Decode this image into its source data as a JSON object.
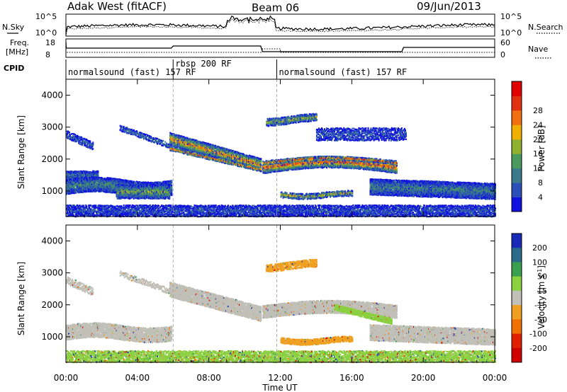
{
  "header": {
    "radar": "Adak West (fitACF)",
    "beam": "Beam 06",
    "date": "09/Jun/2013"
  },
  "top_panels": {
    "nsky_label": "N.Sky",
    "nsearch_label": "N.Search",
    "freq_label_1": "Freq.",
    "freq_label_2": "[MHz]",
    "nave_label": "Nave",
    "cpid_label": "CPID",
    "noise_ticks_left": [
      "10^5",
      "10^0"
    ],
    "noise_ticks_right": [
      "10^5",
      "10^0"
    ],
    "freq_ticks_left": [
      "18",
      "8"
    ],
    "freq_ticks_right": [
      "60",
      "0"
    ]
  },
  "cpid_segments": [
    {
      "label": "normalsound (fast) 157 RF",
      "start_h": 0.0,
      "end_h": 6.0
    },
    {
      "label": "rbsp 200 RF",
      "start_h": 6.0,
      "end_h": 11.8
    },
    {
      "label": "normalsound (fast) 157 RF",
      "start_h": 11.8,
      "end_h": 24.0
    }
  ],
  "chart_data": [
    {
      "type": "heatmap",
      "title": "",
      "ylabel": "Slant Range [km]",
      "xlabel": "",
      "xlim_hours": [
        0,
        24
      ],
      "ylim": [
        200,
        4500
      ],
      "yticks": [
        "1000",
        "2000",
        "3000",
        "4000"
      ],
      "colorbar": {
        "label": "Power [dB]",
        "ticks": [
          "4",
          "8",
          "12",
          "16",
          "20",
          "24",
          "28"
        ],
        "colors": [
          "#1010e0",
          "#2a4fb8",
          "#3a7a8a",
          "#4a9a60",
          "#90b030",
          "#f0b000",
          "#f07010",
          "#e03010",
          "#e00000"
        ]
      }
    },
    {
      "type": "heatmap",
      "title": "",
      "ylabel": "Slant Range [km]",
      "xlabel": "Time UT",
      "xlim_hours": [
        0,
        24
      ],
      "ylim": [
        200,
        4500
      ],
      "yticks": [
        "1000",
        "2000",
        "3000",
        "4000"
      ],
      "xticks": [
        "00:00",
        "04:00",
        "08:00",
        "12:00",
        "16:00",
        "20:00",
        "00:00"
      ],
      "colorbar": {
        "label": "Velocity [m s",
        "label_sup": "-1",
        "label_end": "]",
        "ticks": [
          "200",
          "100",
          "50",
          "15",
          "-15",
          "-50",
          "-100",
          "-200"
        ],
        "colors": [
          "#1a2ab8",
          "#2a6a8a",
          "#3aa050",
          "#8ad040",
          "#c0c0b8",
          "#f0a020",
          "#f07000",
          "#e02000",
          "#d00000"
        ]
      }
    }
  ]
}
